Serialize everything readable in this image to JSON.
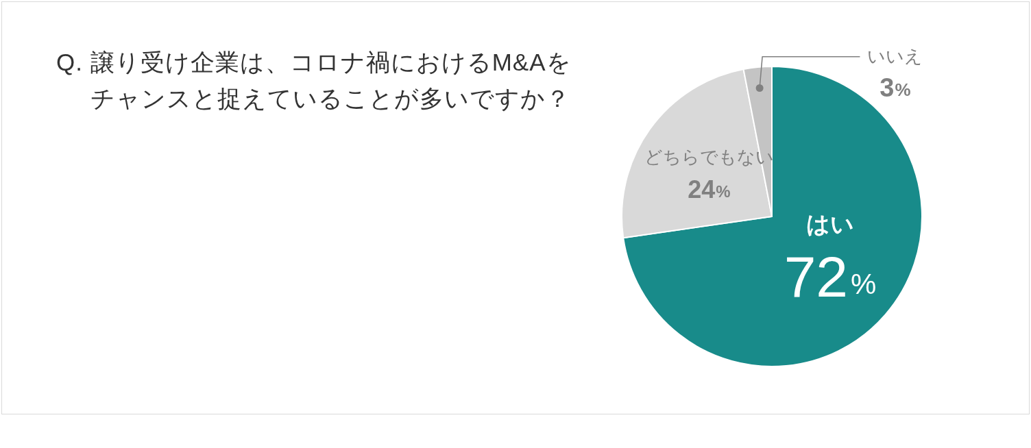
{
  "chart_data": {
    "type": "pie",
    "title": "Q. 譲り受け企業は、コロナ禍におけるM&Aをチャンスと捉えていることが多いですか？",
    "categories": [
      "はい",
      "どちらでもない",
      "いいえ"
    ],
    "values": [
      72,
      24,
      3
    ],
    "colors": [
      "#188b8a",
      "#d9d9d9",
      "#c4c4c4"
    ],
    "value_labels": [
      "72%",
      "24%",
      "3%"
    ]
  }
}
